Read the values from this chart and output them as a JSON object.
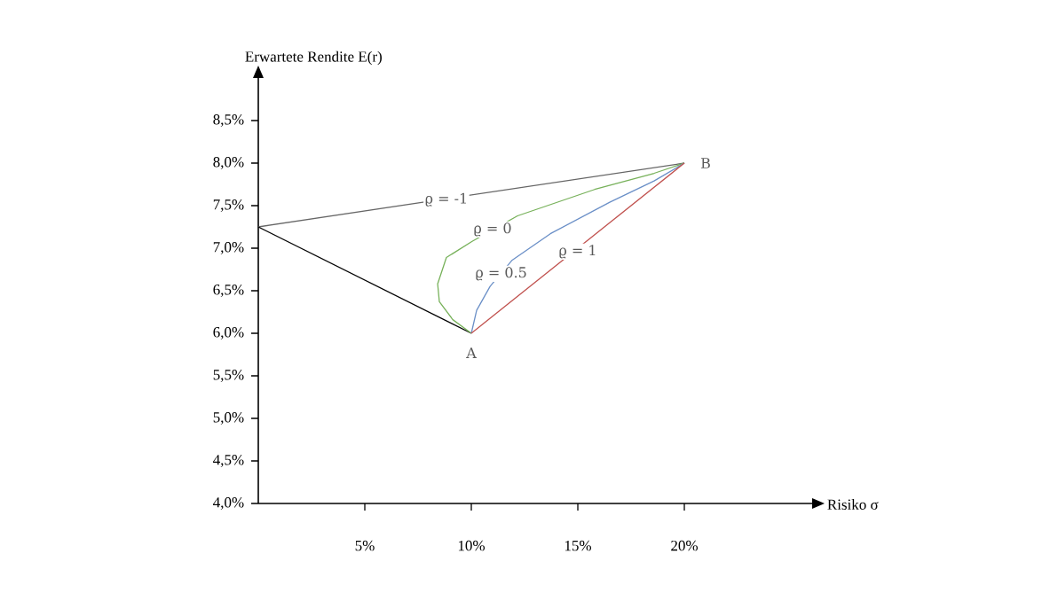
{
  "chart_data": {
    "type": "line",
    "xlabel": "Risiko σ",
    "ylabel": "Erwartete Rendite E(r)",
    "xlim": [
      0,
      26
    ],
    "ylim": [
      4.0,
      9.0
    ],
    "xticks": [
      {
        "value": 5,
        "label": "5%"
      },
      {
        "value": 10,
        "label": "10%"
      },
      {
        "value": 15,
        "label": "15%"
      },
      {
        "value": 20,
        "label": "20%"
      }
    ],
    "yticks": [
      {
        "value": 4.0,
        "label": "4,0%"
      },
      {
        "value": 4.5,
        "label": "4,5%"
      },
      {
        "value": 5.0,
        "label": "5,0%"
      },
      {
        "value": 5.5,
        "label": "5,5%"
      },
      {
        "value": 6.0,
        "label": "6,0%"
      },
      {
        "value": 6.5,
        "label": "6,5%"
      },
      {
        "value": 7.0,
        "label": "7,0%"
      },
      {
        "value": 7.5,
        "label": "7,5%"
      },
      {
        "value": 8.0,
        "label": "8,0%"
      },
      {
        "value": 8.5,
        "label": "8,5%"
      }
    ],
    "series": [
      {
        "color": "#666666",
        "x": [
          0,
          20
        ],
        "values": [
          7.25,
          8.0
        ]
      },
      {
        "color": "#000000",
        "x": [
          0,
          10
        ],
        "values": [
          7.25,
          6.0
        ]
      },
      {
        "color": "#77b15a",
        "x": [
          10,
          9.13,
          8.5,
          8.42,
          8.83,
          10.04,
          12.17,
          15.79,
          18.58,
          20
        ],
        "values": [
          6.0,
          6.16,
          6.37,
          6.58,
          6.89,
          7.08,
          7.38,
          7.69,
          7.88,
          8.0
        ]
      },
      {
        "color": "#6a8fc7",
        "x": [
          10,
          10.25,
          10.88,
          11.92,
          13.71,
          16.5,
          18.58,
          20
        ],
        "values": [
          6.0,
          6.27,
          6.55,
          6.86,
          7.17,
          7.54,
          7.79,
          8.0
        ]
      },
      {
        "color": "#c0504d",
        "x": [
          10,
          20
        ],
        "values": [
          6.0,
          8.0
        ]
      }
    ],
    "annotations": [
      {
        "text": "ϱ = -1",
        "x": 8.83,
        "y": 7.57
      },
      {
        "text": "ϱ = 0",
        "x": 11.0,
        "y": 7.22
      },
      {
        "text": "ϱ = 0.5",
        "x": 11.4,
        "y": 6.7
      },
      {
        "text": "ϱ = 1",
        "x": 15,
        "y": 6.96
      },
      {
        "text": "A",
        "x": 10,
        "y": 5.77
      },
      {
        "text": "B",
        "x": 21,
        "y": 8.0
      }
    ],
    "grid": false,
    "marker": "none",
    "line_style": "solid"
  }
}
